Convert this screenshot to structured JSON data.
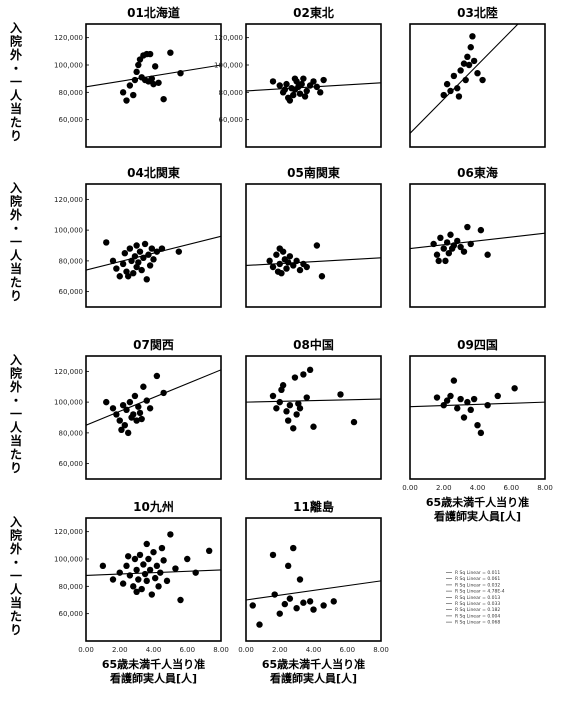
{
  "y_axis_label": "入院外・一人当たり",
  "x_axis_label_line1": "65歳未満千人当り准",
  "x_axis_label_line2": "看護師実人員[人]",
  "legend_lines": [
    "R Sq Linear = 0.011",
    "R Sq Linear = 0.061",
    "R Sq Linear = 0.032",
    "R Sq Linear = 4.78E-4",
    "R Sq Linear = 0.013",
    "R Sq Linear = 0.033",
    "R Sq Linear = 0.182",
    "R Sq Linear = 0.004",
    "R Sq Linear = 0.068"
  ],
  "chart_data": [
    {
      "type": "scatter",
      "title": "01北海道",
      "xlim": [
        0,
        8
      ],
      "ylim": [
        40000,
        130000
      ],
      "yticks": [
        "120,000",
        "100,000",
        "80,000",
        "60,000"
      ],
      "points": [
        [
          2.2,
          80000
        ],
        [
          2.4,
          74000
        ],
        [
          2.6,
          85000
        ],
        [
          2.8,
          78000
        ],
        [
          3.0,
          95000
        ],
        [
          3.1,
          100000
        ],
        [
          3.2,
          104000
        ],
        [
          3.4,
          107000
        ],
        [
          3.5,
          89000
        ],
        [
          3.6,
          108000
        ],
        [
          3.7,
          88000
        ],
        [
          3.9,
          90000
        ],
        [
          4.0,
          86000
        ],
        [
          4.3,
          87000
        ],
        [
          4.6,
          75000
        ],
        [
          5.0,
          109000
        ],
        [
          3.3,
          91000
        ],
        [
          3.8,
          108000
        ],
        [
          4.1,
          99000
        ],
        [
          5.6,
          94000
        ],
        [
          2.9,
          89000
        ]
      ],
      "fit": [
        [
          0,
          84000
        ],
        [
          8,
          100000
        ]
      ]
    },
    {
      "type": "scatter",
      "title": "02東北",
      "xlim": [
        0,
        8
      ],
      "ylim": [
        40000,
        130000
      ],
      "yticks": [
        "120,000",
        "100,000",
        "80,000",
        "60,000"
      ],
      "points": [
        [
          1.6,
          88000
        ],
        [
          2.0,
          85000
        ],
        [
          2.2,
          80000
        ],
        [
          2.4,
          86000
        ],
        [
          2.5,
          76000
        ],
        [
          2.6,
          74000
        ],
        [
          2.7,
          83000
        ],
        [
          2.8,
          78000
        ],
        [
          2.9,
          82000
        ],
        [
          3.0,
          88000
        ],
        [
          3.1,
          84000
        ],
        [
          3.2,
          79000
        ],
        [
          3.3,
          86000
        ],
        [
          3.4,
          90000
        ],
        [
          3.6,
          81000
        ],
        [
          3.8,
          85000
        ],
        [
          4.0,
          88000
        ],
        [
          4.2,
          84000
        ],
        [
          4.6,
          89000
        ],
        [
          2.3,
          82000
        ],
        [
          2.9,
          90000
        ],
        [
          3.5,
          77000
        ],
        [
          4.4,
          80000
        ]
      ],
      "fit": [
        [
          0,
          81000
        ],
        [
          8,
          87000
        ]
      ]
    },
    {
      "type": "scatter",
      "title": "03北陸",
      "xlim": [
        0,
        8
      ],
      "ylim": [
        40000,
        130000
      ],
      "yticks": [],
      "points": [
        [
          2.0,
          78000
        ],
        [
          2.2,
          86000
        ],
        [
          2.4,
          81000
        ],
        [
          2.6,
          92000
        ],
        [
          2.8,
          83000
        ],
        [
          3.0,
          96000
        ],
        [
          3.2,
          101000
        ],
        [
          3.4,
          106000
        ],
        [
          3.5,
          100000
        ],
        [
          3.6,
          113000
        ],
        [
          3.8,
          103000
        ],
        [
          4.0,
          94000
        ],
        [
          3.7,
          121000
        ],
        [
          4.3,
          89000
        ],
        [
          2.9,
          77000
        ],
        [
          3.3,
          89000
        ]
      ],
      "fit": [
        [
          0,
          50000
        ],
        [
          8,
          150000
        ]
      ]
    },
    {
      "type": "scatter",
      "title": "04北関東",
      "xlim": [
        0,
        8
      ],
      "ylim": [
        50000,
        130000
      ],
      "yticks": [
        "120,000",
        "100,000",
        "80,000",
        "60,000"
      ],
      "points": [
        [
          1.2,
          92000
        ],
        [
          1.6,
          80000
        ],
        [
          1.8,
          75000
        ],
        [
          2.0,
          70000
        ],
        [
          2.2,
          78000
        ],
        [
          2.3,
          85000
        ],
        [
          2.4,
          73000
        ],
        [
          2.6,
          88000
        ],
        [
          2.7,
          80000
        ],
        [
          2.8,
          72000
        ],
        [
          2.9,
          83000
        ],
        [
          3.0,
          90000
        ],
        [
          3.1,
          79000
        ],
        [
          3.2,
          86000
        ],
        [
          3.3,
          74000
        ],
        [
          3.4,
          82000
        ],
        [
          3.5,
          91000
        ],
        [
          3.6,
          68000
        ],
        [
          3.7,
          84000
        ],
        [
          3.8,
          77000
        ],
        [
          3.9,
          88000
        ],
        [
          4.0,
          81000
        ],
        [
          4.2,
          86000
        ],
        [
          4.5,
          88000
        ],
        [
          5.5,
          86000
        ],
        [
          2.5,
          70000
        ],
        [
          3.0,
          76000
        ]
      ],
      "fit": [
        [
          0,
          74000
        ],
        [
          8,
          96000
        ]
      ]
    },
    {
      "type": "scatter",
      "title": "05南関東",
      "xlim": [
        0,
        8
      ],
      "ylim": [
        50000,
        130000
      ],
      "yticks": [],
      "points": [
        [
          1.4,
          80000
        ],
        [
          1.6,
          76000
        ],
        [
          1.8,
          84000
        ],
        [
          2.0,
          78000
        ],
        [
          2.1,
          72000
        ],
        [
          2.2,
          86000
        ],
        [
          2.3,
          81000
        ],
        [
          2.4,
          75000
        ],
        [
          2.5,
          79000
        ],
        [
          2.6,
          83000
        ],
        [
          2.8,
          77000
        ],
        [
          3.0,
          80000
        ],
        [
          3.2,
          74000
        ],
        [
          3.4,
          78000
        ],
        [
          2.0,
          88000
        ],
        [
          4.2,
          90000
        ],
        [
          4.5,
          70000
        ],
        [
          3.6,
          76000
        ],
        [
          1.9,
          73000
        ]
      ],
      "fit": [
        [
          0,
          77000
        ],
        [
          8,
          82000
        ]
      ]
    },
    {
      "type": "scatter",
      "title": "06東海",
      "xlim": [
        0,
        8
      ],
      "ylim": [
        50000,
        130000
      ],
      "yticks": [],
      "points": [
        [
          1.4,
          91000
        ],
        [
          1.6,
          84000
        ],
        [
          1.8,
          95000
        ],
        [
          2.0,
          88000
        ],
        [
          2.2,
          92000
        ],
        [
          2.3,
          85000
        ],
        [
          2.4,
          97000
        ],
        [
          2.6,
          90000
        ],
        [
          2.8,
          93000
        ],
        [
          3.0,
          89000
        ],
        [
          3.2,
          86000
        ],
        [
          3.4,
          102000
        ],
        [
          3.6,
          91000
        ],
        [
          2.1,
          80000
        ],
        [
          1.7,
          80000
        ],
        [
          4.2,
          100000
        ],
        [
          4.6,
          84000
        ],
        [
          2.5,
          88000
        ]
      ],
      "fit": [
        [
          0,
          88000
        ],
        [
          8,
          98000
        ]
      ]
    },
    {
      "type": "scatter",
      "title": "07関西",
      "xlim": [
        0,
        8
      ],
      "ylim": [
        50000,
        130000
      ],
      "yticks": [
        "120,000",
        "100,000",
        "80,000",
        "60,000"
      ],
      "points": [
        [
          1.2,
          100000
        ],
        [
          1.6,
          96000
        ],
        [
          1.8,
          92000
        ],
        [
          2.0,
          88000
        ],
        [
          2.2,
          98000
        ],
        [
          2.3,
          85000
        ],
        [
          2.4,
          95000
        ],
        [
          2.5,
          80000
        ],
        [
          2.6,
          100000
        ],
        [
          2.8,
          92000
        ],
        [
          2.9,
          104000
        ],
        [
          3.0,
          88000
        ],
        [
          3.1,
          97000
        ],
        [
          3.2,
          93000
        ],
        [
          3.4,
          110000
        ],
        [
          3.6,
          101000
        ],
        [
          3.8,
          96000
        ],
        [
          4.2,
          117000
        ],
        [
          4.6,
          106000
        ],
        [
          2.1,
          82000
        ],
        [
          2.7,
          90000
        ],
        [
          3.3,
          89000
        ]
      ],
      "fit": [
        [
          0,
          85000
        ],
        [
          8,
          121000
        ]
      ]
    },
    {
      "type": "scatter",
      "title": "08中国",
      "xlim": [
        0,
        8
      ],
      "ylim": [
        50000,
        130000
      ],
      "yticks": [],
      "points": [
        [
          1.6,
          104000
        ],
        [
          1.8,
          96000
        ],
        [
          2.0,
          100000
        ],
        [
          2.2,
          111000
        ],
        [
          2.4,
          94000
        ],
        [
          2.5,
          88000
        ],
        [
          2.6,
          98000
        ],
        [
          2.8,
          83000
        ],
        [
          3.0,
          92000
        ],
        [
          3.2,
          96000
        ],
        [
          3.4,
          118000
        ],
        [
          3.6,
          103000
        ],
        [
          3.8,
          121000
        ],
        [
          4.0,
          84000
        ],
        [
          5.6,
          105000
        ],
        [
          6.4,
          87000
        ],
        [
          2.1,
          108000
        ],
        [
          2.9,
          116000
        ],
        [
          3.1,
          99000
        ]
      ],
      "fit": [
        [
          0,
          100000
        ],
        [
          8,
          102000
        ]
      ]
    },
    {
      "type": "scatter",
      "title": "09四国",
      "xlim": [
        0,
        8
      ],
      "ylim": [
        50000,
        130000
      ],
      "xticks": [
        "0.00",
        "2.00",
        "4.00",
        "6.00",
        "8.00"
      ],
      "yticks": [],
      "points": [
        [
          1.6,
          103000
        ],
        [
          2.0,
          98000
        ],
        [
          2.4,
          104000
        ],
        [
          2.6,
          114000
        ],
        [
          2.8,
          96000
        ],
        [
          3.0,
          102000
        ],
        [
          3.2,
          90000
        ],
        [
          3.4,
          100000
        ],
        [
          3.6,
          95000
        ],
        [
          3.8,
          102000
        ],
        [
          4.0,
          85000
        ],
        [
          4.2,
          80000
        ],
        [
          4.6,
          98000
        ],
        [
          5.2,
          104000
        ],
        [
          6.2,
          109000
        ],
        [
          2.2,
          101000
        ]
      ],
      "fit": [
        [
          0,
          97000
        ],
        [
          8,
          100000
        ]
      ]
    },
    {
      "type": "scatter",
      "title": "10九州",
      "xlim": [
        0,
        8
      ],
      "ylim": [
        40000,
        130000
      ],
      "xticks": [
        "0.00",
        "2.00",
        "4.00",
        "6.00",
        "8.00"
      ],
      "yticks": [
        "120,000",
        "100,000",
        "80,000",
        "60,000"
      ],
      "points": [
        [
          1.0,
          95000
        ],
        [
          1.6,
          85000
        ],
        [
          2.0,
          90000
        ],
        [
          2.2,
          82000
        ],
        [
          2.4,
          95000
        ],
        [
          2.6,
          88000
        ],
        [
          2.8,
          80000
        ],
        [
          2.9,
          100000
        ],
        [
          3.0,
          92000
        ],
        [
          3.1,
          85000
        ],
        [
          3.2,
          103000
        ],
        [
          3.3,
          78000
        ],
        [
          3.4,
          96000
        ],
        [
          3.5,
          89000
        ],
        [
          3.6,
          84000
        ],
        [
          3.7,
          100000
        ],
        [
          3.8,
          92000
        ],
        [
          3.9,
          74000
        ],
        [
          4.0,
          105000
        ],
        [
          4.1,
          86000
        ],
        [
          4.2,
          95000
        ],
        [
          4.3,
          80000
        ],
        [
          4.4,
          90000
        ],
        [
          4.6,
          99000
        ],
        [
          4.8,
          84000
        ],
        [
          5.0,
          118000
        ],
        [
          5.3,
          93000
        ],
        [
          5.6,
          70000
        ],
        [
          6.0,
          100000
        ],
        [
          6.5,
          90000
        ],
        [
          7.3,
          106000
        ],
        [
          4.5,
          108000
        ],
        [
          3.0,
          76000
        ],
        [
          2.5,
          102000
        ],
        [
          3.6,
          111000
        ]
      ],
      "fit": [
        [
          0,
          88000
        ],
        [
          8,
          92000
        ]
      ]
    },
    {
      "type": "scatter",
      "title": "11離島",
      "xlim": [
        0,
        8
      ],
      "ylim": [
        40000,
        130000
      ],
      "xticks": [
        "0.00",
        "2.00",
        "4.00",
        "6.00",
        "8.00"
      ],
      "yticks": [],
      "points": [
        [
          0.4,
          66000
        ],
        [
          0.8,
          52000
        ],
        [
          1.6,
          103000
        ],
        [
          1.7,
          74000
        ],
        [
          2.0,
          60000
        ],
        [
          2.3,
          67000
        ],
        [
          2.5,
          95000
        ],
        [
          2.6,
          71000
        ],
        [
          2.8,
          108000
        ],
        [
          3.0,
          64000
        ],
        [
          3.2,
          85000
        ],
        [
          3.4,
          68000
        ],
        [
          3.8,
          69000
        ],
        [
          4.0,
          63000
        ],
        [
          4.6,
          66000
        ],
        [
          5.2,
          69000
        ]
      ],
      "fit": [
        [
          0,
          70000
        ],
        [
          8,
          84000
        ]
      ]
    }
  ]
}
